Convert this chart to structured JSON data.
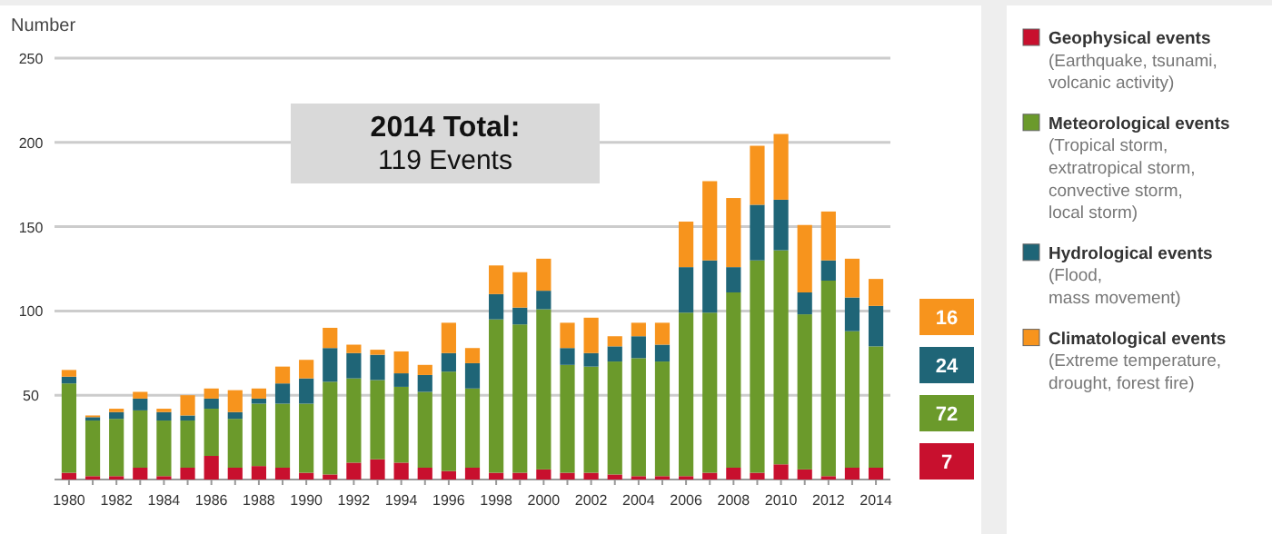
{
  "chart_data": {
    "type": "bar",
    "stacked": true,
    "ylabel": "Number",
    "legend": "right",
    "grid": "y",
    "categories": [
      "1980",
      null,
      "1982",
      null,
      "1984",
      null,
      "1986",
      null,
      "1988",
      null,
      "1990",
      null,
      "1992",
      null,
      "1994",
      null,
      "1996",
      null,
      "1998",
      null,
      "2000",
      null,
      "2002",
      null,
      "2004",
      null,
      "2006",
      null,
      "2008",
      null,
      "2010",
      null,
      "2012",
      null,
      "2014"
    ],
    "ylim": [
      0,
      250
    ],
    "yticks": [
      {
        "value": 0,
        "label": null
      },
      50,
      100,
      150,
      200,
      250
    ],
    "series": [
      {
        "name": "Geophysical events\n(Earthquake, tsunami,\nvolcanic activity)",
        "color": "#c8102e",
        "values": [
          4,
          2,
          2,
          7,
          2,
          7,
          14,
          7,
          8,
          7,
          4,
          3,
          10,
          12,
          10,
          7,
          5,
          7,
          4,
          4,
          6,
          4,
          4,
          3,
          2,
          2,
          2,
          4,
          7,
          4,
          9,
          6,
          2,
          7,
          7
        ]
      },
      {
        "name": "Meteorological events\n(Tropical storm,\nextratropical storm,\nconvective storm,\nlocal storm)",
        "color": "#6b9a2b",
        "values": [
          53,
          33,
          34,
          34,
          33,
          28,
          28,
          29,
          37,
          38,
          41,
          55,
          50,
          47,
          45,
          45,
          59,
          47,
          91,
          88,
          95,
          64,
          63,
          67,
          70,
          68,
          97,
          95,
          104,
          126,
          127,
          92,
          116,
          81,
          72
        ]
      },
      {
        "name": "Hydrological events\n(Flood,\nmass movement)",
        "color": "#1f6577",
        "values": [
          4,
          2,
          4,
          7,
          5,
          3,
          6,
          4,
          3,
          12,
          15,
          20,
          15,
          15,
          8,
          10,
          11,
          15,
          15,
          10,
          11,
          10,
          8,
          9,
          13,
          10,
          27,
          31,
          15,
          33,
          30,
          13,
          12,
          20,
          24
        ]
      },
      {
        "name": "Climatological events\n(Extreme temperature,\ndrought, forest fire)",
        "color": "#f7941d",
        "values": [
          4,
          1,
          2,
          4,
          2,
          12,
          6,
          13,
          6,
          10,
          11,
          12,
          5,
          3,
          13,
          6,
          18,
          9,
          17,
          21,
          19,
          15,
          21,
          6,
          8,
          13,
          27,
          47,
          41,
          35,
          39,
          40,
          29,
          23,
          16
        ]
      }
    ],
    "annotations": [
      "2014 Total:",
      "119 Events",
      "7",
      "72",
      "24",
      "16"
    ]
  }
}
